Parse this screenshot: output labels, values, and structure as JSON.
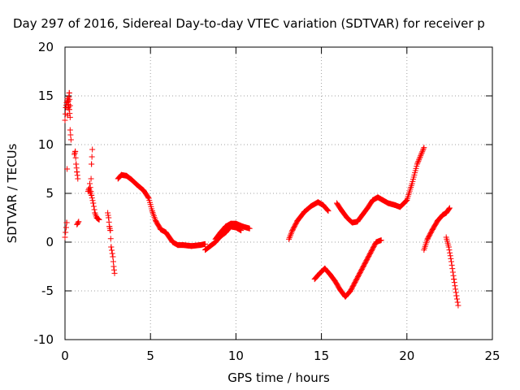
{
  "chart_data": {
    "type": "scatter",
    "title": "Day 297 of 2016, Sidereal Day-to-day VTEC variation (SDTVAR) for receiver p",
    "xlabel": "GPS time / hours",
    "ylabel": "SDTVAR / TECUs",
    "xlim": [
      0,
      25
    ],
    "ylim": [
      -10,
      20
    ],
    "xticks": [
      0,
      5,
      10,
      15,
      20,
      25
    ],
    "yticks": [
      -10,
      -5,
      0,
      5,
      10,
      15,
      20
    ],
    "grid": true,
    "marker": "+",
    "color": "#ff0000",
    "segments": [
      {
        "x": [
          0.0,
          0.1,
          0.15,
          0.2,
          0.25,
          0.3
        ],
        "y": [
          0.5,
          2.0,
          13.0,
          14.5,
          15.3,
          14.0
        ]
      },
      {
        "x": [
          0.0,
          0.05,
          0.1,
          0.15,
          0.2,
          0.25,
          0.3
        ],
        "y": [
          12.5,
          13.8,
          14.3,
          14.7,
          14.1,
          13.6,
          12.8
        ]
      },
      {
        "x": [
          0.3,
          0.35
        ],
        "y": [
          11.5,
          10.5
        ]
      },
      {
        "x": [
          0.55,
          0.6,
          0.65,
          0.7,
          0.75
        ],
        "y": [
          9.0,
          9.3,
          8.0,
          7.2,
          6.5
        ]
      },
      {
        "x": [
          0.7,
          0.8
        ],
        "y": [
          1.8,
          2.1
        ]
      },
      {
        "x": [
          1.35,
          1.4,
          1.5,
          1.55,
          1.6
        ],
        "y": [
          5.2,
          5.5,
          5.0,
          8.0,
          9.5
        ]
      },
      {
        "x": [
          1.45,
          1.55,
          1.65,
          1.75,
          1.85,
          2.0
        ],
        "y": [
          6.0,
          4.8,
          4.0,
          3.0,
          2.5,
          2.3
        ]
      },
      {
        "x": [
          2.5,
          2.55,
          2.6,
          2.65,
          2.7,
          2.8,
          2.85,
          2.9
        ],
        "y": [
          3.0,
          2.5,
          1.6,
          1.2,
          -0.5,
          -1.5,
          -2.5,
          -3.2
        ]
      },
      {
        "x": [
          3.1,
          3.3,
          3.6,
          3.9,
          4.2,
          4.6,
          4.9,
          5.1,
          5.3,
          5.6,
          5.9,
          6.3,
          6.6,
          6.9,
          7.4,
          7.9,
          8.2
        ],
        "y": [
          6.5,
          6.9,
          6.8,
          6.4,
          5.9,
          5.3,
          4.5,
          3.2,
          2.2,
          1.3,
          1.0,
          0.0,
          -0.3,
          -0.3,
          -0.4,
          -0.3,
          -0.2
        ]
      },
      {
        "x": [
          8.2,
          8.5,
          8.8,
          9.1,
          9.4,
          9.7,
          10.0,
          10.3
        ],
        "y": [
          -0.8,
          -0.4,
          0.0,
          0.6,
          1.0,
          1.6,
          1.5,
          1.2
        ]
      },
      {
        "x": [
          8.8,
          9.1,
          9.4,
          9.7,
          10.0,
          10.4,
          10.8
        ],
        "y": [
          0.3,
          1.0,
          1.6,
          1.9,
          1.9,
          1.6,
          1.4
        ]
      },
      {
        "x": [
          13.1,
          13.3,
          13.6,
          14.0,
          14.4,
          14.8,
          15.1,
          15.4
        ],
        "y": [
          0.3,
          1.2,
          2.2,
          3.1,
          3.7,
          4.1,
          3.8,
          3.2
        ]
      },
      {
        "x": [
          14.6,
          14.9,
          15.2,
          15.5,
          15.8,
          16.1,
          16.4,
          16.7,
          17.0,
          17.3,
          17.6,
          17.9,
          18.2,
          18.5
        ],
        "y": [
          -3.8,
          -3.2,
          -2.7,
          -3.3,
          -4.0,
          -4.9,
          -5.6,
          -5.0,
          -4.0,
          -3.0,
          -2.0,
          -1.0,
          0.0,
          0.2
        ]
      },
      {
        "x": [
          15.9,
          16.2,
          16.5,
          16.8,
          17.1,
          17.4,
          17.7,
          18.0,
          18.3,
          18.6,
          18.9,
          19.3,
          19.6,
          20.0,
          20.3,
          20.6,
          21.0
        ],
        "y": [
          4.0,
          3.2,
          2.5,
          2.0,
          2.1,
          2.8,
          3.5,
          4.3,
          4.6,
          4.3,
          4.0,
          3.8,
          3.6,
          4.3,
          6.0,
          8.0,
          9.7
        ]
      },
      {
        "x": [
          21.0,
          21.2,
          21.5,
          21.8,
          22.1,
          22.3,
          22.5
        ],
        "y": [
          -0.8,
          0.3,
          1.3,
          2.2,
          2.8,
          3.0,
          3.5
        ]
      },
      {
        "x": [
          22.3,
          22.45,
          22.6,
          22.75,
          22.9,
          23.0
        ],
        "y": [
          0.5,
          -0.5,
          -2.0,
          -3.8,
          -5.5,
          -6.5
        ]
      }
    ]
  }
}
